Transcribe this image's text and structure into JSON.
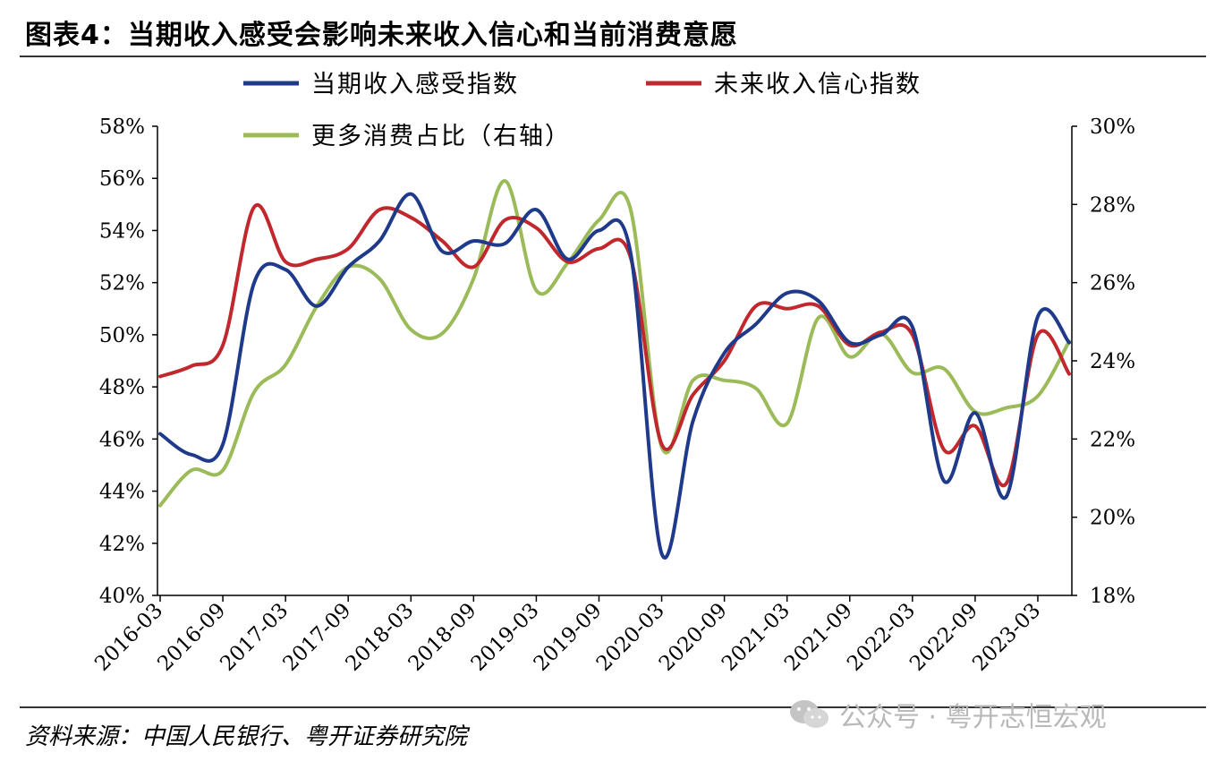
{
  "title": "图表4：当期收入感受会影响未来收入信心和当前消费意愿",
  "source": "资料来源：中国人民银行、粤开证券研究院",
  "watermark": "公众号 · 粤开志恒宏观",
  "chart_data": {
    "type": "line",
    "x": [
      "2016-03",
      "2016-06",
      "2016-09",
      "2016-12",
      "2017-03",
      "2017-06",
      "2017-09",
      "2017-12",
      "2018-03",
      "2018-06",
      "2018-09",
      "2018-12",
      "2019-03",
      "2019-06",
      "2019-09",
      "2019-12",
      "2020-03",
      "2020-06",
      "2020-09",
      "2020-12",
      "2021-03",
      "2021-06",
      "2021-09",
      "2021-12",
      "2022-03",
      "2022-06",
      "2022-09",
      "2022-12",
      "2023-03",
      "2023-06"
    ],
    "xticks": [
      "2016-03",
      "2016-09",
      "2017-03",
      "2017-09",
      "2018-03",
      "2018-09",
      "2019-03",
      "2019-09",
      "2020-03",
      "2020-09",
      "2021-03",
      "2021-09",
      "2022-03",
      "2022-09",
      "2023-03"
    ],
    "series": [
      {
        "name": "当期收入感受指数",
        "axis": "left",
        "color": "#1f3a8a",
        "values": [
          46.2,
          45.4,
          45.8,
          52.0,
          52.5,
          51.1,
          52.6,
          53.6,
          55.4,
          53.2,
          53.6,
          53.5,
          54.8,
          52.9,
          54.0,
          53.2,
          41.6,
          46.7,
          49.3,
          50.4,
          51.6,
          51.3,
          49.7,
          50.0,
          50.3,
          44.4,
          47.0,
          43.8,
          50.7,
          49.7
        ]
      },
      {
        "name": "未来收入信心指数",
        "axis": "left",
        "color": "#c0282d",
        "values": [
          48.4,
          48.8,
          49.6,
          54.9,
          52.8,
          52.9,
          53.3,
          54.8,
          54.5,
          53.6,
          52.6,
          54.4,
          54.1,
          52.8,
          53.3,
          53.0,
          45.8,
          47.7,
          49.0,
          51.1,
          51.0,
          51.1,
          49.6,
          50.1,
          50.0,
          45.6,
          46.5,
          44.3,
          50.0,
          48.5
        ]
      },
      {
        "name": "更多消费占比（右轴）",
        "axis": "right",
        "color": "#9bbb59",
        "values": [
          20.3,
          21.2,
          21.2,
          23.2,
          23.9,
          25.4,
          26.4,
          26.1,
          24.8,
          24.7,
          26.1,
          28.6,
          25.8,
          26.5,
          27.6,
          27.9,
          21.8,
          23.5,
          23.5,
          23.3,
          22.4,
          25.1,
          24.1,
          24.7,
          23.7,
          23.8,
          22.7,
          22.8,
          23.1,
          24.5
        ]
      }
    ],
    "yleft": {
      "min": 40,
      "max": 58,
      "step": 2,
      "unit": "%"
    },
    "yright": {
      "min": 18,
      "max": 30,
      "step": 2,
      "unit": "%"
    },
    "legend": "top"
  }
}
